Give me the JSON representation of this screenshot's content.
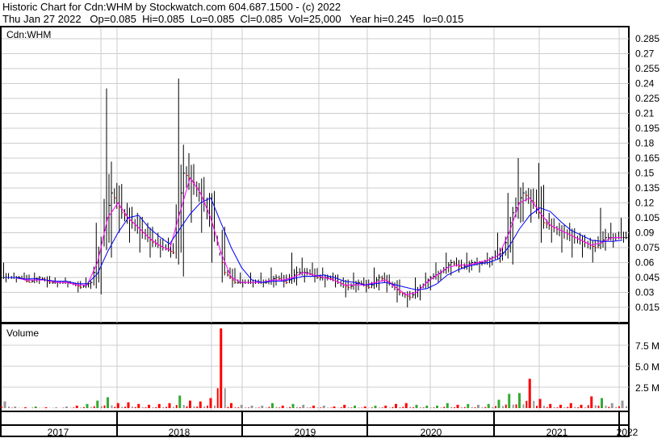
{
  "header": {
    "title": "Historic Chart for Cdn:WHM by Stockwatch.com 604.687.1500 - (c) 2022",
    "quote": "Thu Jan 27 2022   Op=0.085  Hi=0.085  Lo=0.085  Cl=0.085  Vol=25,000   Year hi=0.245   lo=0.015"
  },
  "chart_data": {
    "type": "line",
    "symbol_label": "Cdn:WHM",
    "volume_label": "Volume",
    "price_ticks": [
      "0.285",
      "0.27",
      "0.255",
      "0.24",
      "0.225",
      "0.21",
      "0.195",
      "0.18",
      "0.165",
      "0.15",
      "0.135",
      "0.12",
      "0.105",
      "0.09",
      "0.075",
      "0.06",
      "0.045",
      "0.03",
      "0.015"
    ],
    "volume_ticks": [
      "7.5 M",
      "5.0 M",
      "2.5 M"
    ],
    "x_labels": [
      "2017",
      "2018",
      "2019",
      "2020",
      "2021",
      "2022"
    ],
    "ylim": [
      0.0,
      0.295
    ],
    "series_colors": {
      "price": "#000000",
      "down": "#ff0000",
      "ma_short": "#ff00ff",
      "ma_long": "#0000ff",
      "vol_up": "#33aa33",
      "vol_down": "#ff0000",
      "vol_flat": "#999999"
    },
    "monthly": {
      "start": "2017-01",
      "close": [
        0.045,
        0.045,
        0.04,
        0.045,
        0.04,
        0.04,
        0.04,
        0.035,
        0.04,
        0.08,
        0.13,
        0.11,
        0.1,
        0.09,
        0.08,
        0.075,
        0.07,
        0.15,
        0.14,
        0.12,
        0.09,
        0.05,
        0.04,
        0.04,
        0.04,
        0.04,
        0.045,
        0.04,
        0.05,
        0.05,
        0.045,
        0.045,
        0.04,
        0.035,
        0.04,
        0.035,
        0.045,
        0.04,
        0.03,
        0.025,
        0.035,
        0.045,
        0.05,
        0.06,
        0.055,
        0.06,
        0.06,
        0.065,
        0.07,
        0.11,
        0.13,
        0.12,
        0.1,
        0.095,
        0.09,
        0.085,
        0.08,
        0.075,
        0.085,
        0.085,
        0.085
      ],
      "high": [
        0.06,
        0.05,
        0.05,
        0.05,
        0.045,
        0.045,
        0.045,
        0.04,
        0.045,
        0.1,
        0.235,
        0.14,
        0.12,
        0.11,
        0.1,
        0.09,
        0.085,
        0.245,
        0.17,
        0.14,
        0.13,
        0.07,
        0.055,
        0.05,
        0.05,
        0.05,
        0.055,
        0.05,
        0.07,
        0.065,
        0.06,
        0.055,
        0.05,
        0.045,
        0.05,
        0.045,
        0.055,
        0.05,
        0.04,
        0.03,
        0.045,
        0.05,
        0.06,
        0.07,
        0.065,
        0.07,
        0.065,
        0.07,
        0.09,
        0.13,
        0.165,
        0.135,
        0.16,
        0.11,
        0.1,
        0.1,
        0.09,
        0.085,
        0.115,
        0.1,
        0.105
      ],
      "low": [
        0.04,
        0.04,
        0.04,
        0.04,
        0.035,
        0.035,
        0.035,
        0.03,
        0.035,
        0.04,
        0.08,
        0.09,
        0.08,
        0.07,
        0.065,
        0.065,
        0.065,
        0.07,
        0.1,
        0.09,
        0.06,
        0.04,
        0.035,
        0.035,
        0.035,
        0.035,
        0.035,
        0.035,
        0.04,
        0.04,
        0.04,
        0.035,
        0.035,
        0.025,
        0.03,
        0.03,
        0.035,
        0.03,
        0.02,
        0.015,
        0.025,
        0.035,
        0.04,
        0.05,
        0.05,
        0.05,
        0.05,
        0.055,
        0.06,
        0.07,
        0.1,
        0.1,
        0.08,
        0.08,
        0.07,
        0.065,
        0.065,
        0.06,
        0.075,
        0.075,
        0.08
      ],
      "volume_m": [
        0.8,
        0.2,
        0.1,
        0.2,
        0.1,
        0.1,
        0.2,
        0.3,
        0.5,
        0.9,
        1.3,
        0.6,
        0.7,
        0.5,
        0.4,
        0.5,
        0.6,
        1.5,
        0.9,
        0.8,
        1.2,
        9.5,
        0.6,
        0.4,
        0.3,
        0.3,
        0.6,
        0.3,
        0.5,
        0.4,
        0.3,
        0.3,
        0.2,
        0.4,
        0.3,
        0.2,
        0.3,
        0.3,
        0.5,
        0.6,
        0.4,
        0.3,
        0.3,
        0.6,
        0.4,
        0.5,
        0.4,
        0.5,
        1.0,
        1.7,
        1.8,
        3.5,
        1.1,
        0.5,
        0.4,
        0.6,
        0.4,
        1.4,
        1.2,
        0.6,
        0.9
      ]
    }
  }
}
